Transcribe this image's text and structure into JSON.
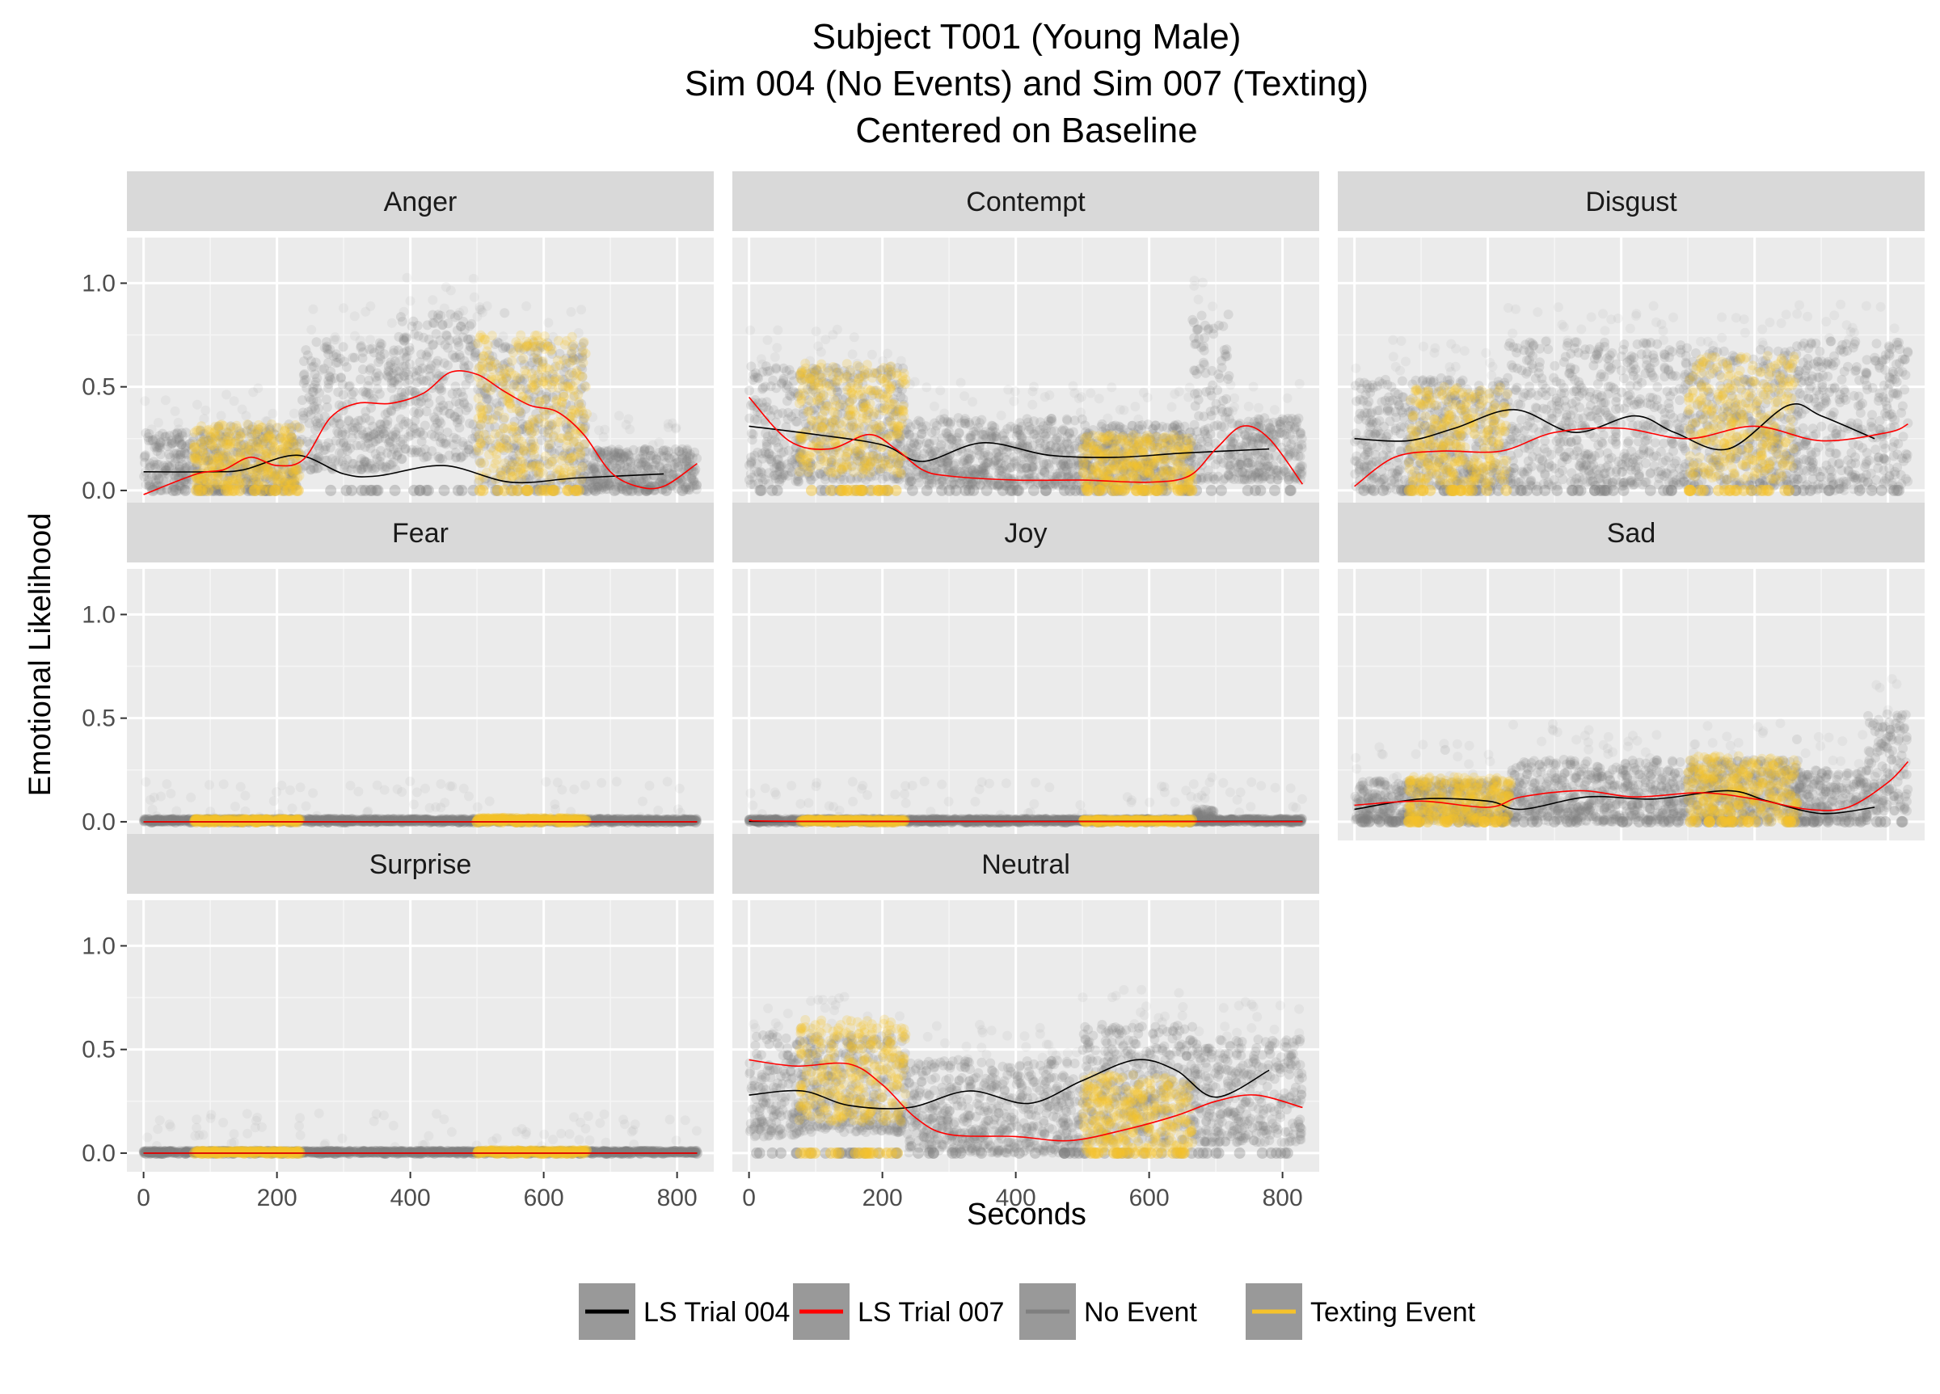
{
  "chart_data": {
    "type": "scatter",
    "title_lines": [
      "Subject T001 (Young Male)",
      "Sim 004 (No Events) and Sim 007 (Texting)",
      "Centered on Baseline"
    ],
    "xlabel": "Seconds",
    "ylabel": "Emotional Likelihood",
    "xlim": [
      -25,
      855
    ],
    "ylim": [
      -0.09,
      1.22
    ],
    "x_ticks": [
      0,
      200,
      400,
      600,
      800
    ],
    "y_ticks": [
      0.0,
      0.5,
      1.0
    ],
    "x_tick_labels": [
      "0",
      "200",
      "400",
      "600",
      "800"
    ],
    "y_tick_labels": [
      "0.0",
      "0.5",
      "1.0"
    ],
    "grid": true,
    "legend": {
      "position": "bottom",
      "entries": [
        {
          "label": "LS Trial 004",
          "color": "#000000"
        },
        {
          "label": "LS Trial 007",
          "color": "#ff0000"
        },
        {
          "label": "No Event",
          "color": "#7f7f7f"
        },
        {
          "label": "Texting Event",
          "color": "#f5c22b"
        }
      ]
    },
    "colors": {
      "no_event": "#7f7f7f",
      "texting_event": "#f5c22b",
      "ls_trial_004": "#000000",
      "ls_trial_007": "#ff0000"
    },
    "texting_intervals": [
      [
        75,
        235
      ],
      [
        500,
        665
      ]
    ],
    "panels": [
      {
        "name": "Anger",
        "bands": [
          {
            "x": [
              0,
              80
            ],
            "lo": 0.0,
            "hi": 0.28
          },
          {
            "x": [
              80,
              235
            ],
            "lo": 0.0,
            "hi": 0.32
          },
          {
            "x": [
              235,
              380
            ],
            "lo": 0.1,
            "hi": 0.72
          },
          {
            "x": [
              380,
              500
            ],
            "lo": 0.15,
            "hi": 0.85
          },
          {
            "x": [
              500,
              665
            ],
            "lo": 0.0,
            "hi": 0.72
          },
          {
            "x": [
              665,
              830
            ],
            "lo": 0.0,
            "hi": 0.2
          }
        ],
        "texting_bands": [
          {
            "x": [
              75,
              235
            ],
            "lo": 0.02,
            "hi": 0.32
          },
          {
            "x": [
              500,
              665
            ],
            "lo": 0.05,
            "hi": 0.75
          }
        ],
        "ls_004": {
          "x": [
            0,
            100,
            150,
            230,
            300,
            350,
            450,
            550,
            650,
            780
          ],
          "y": [
            0.09,
            0.09,
            0.1,
            0.17,
            0.08,
            0.07,
            0.12,
            0.04,
            0.06,
            0.08
          ]
        },
        "ls_007": {
          "x": [
            0,
            80,
            120,
            160,
            200,
            240,
            280,
            320,
            370,
            420,
            460,
            500,
            540,
            580,
            620,
            660,
            700,
            740,
            780,
            830
          ],
          "y": [
            -0.02,
            0.08,
            0.1,
            0.16,
            0.12,
            0.15,
            0.35,
            0.42,
            0.42,
            0.47,
            0.57,
            0.56,
            0.48,
            0.41,
            0.38,
            0.27,
            0.09,
            0.02,
            0.02,
            0.13
          ]
        }
      },
      {
        "name": "Contempt",
        "bands": [
          {
            "x": [
              0,
              75
            ],
            "lo": 0.03,
            "hi": 0.6
          },
          {
            "x": [
              75,
              235
            ],
            "lo": 0.05,
            "hi": 0.6
          },
          {
            "x": [
              235,
              500
            ],
            "lo": 0.02,
            "hi": 0.35
          },
          {
            "x": [
              500,
              665
            ],
            "lo": 0.02,
            "hi": 0.32
          },
          {
            "x": [
              665,
              720
            ],
            "lo": 0.05,
            "hi": 0.85
          },
          {
            "x": [
              720,
              830
            ],
            "lo": 0.05,
            "hi": 0.35
          }
        ],
        "texting_bands": [
          {
            "x": [
              75,
              235
            ],
            "lo": 0.08,
            "hi": 0.62
          },
          {
            "x": [
              500,
              665
            ],
            "lo": 0.0,
            "hi": 0.27
          }
        ],
        "ls_004": {
          "x": [
            0,
            100,
            200,
            260,
            350,
            450,
            550,
            650,
            780
          ],
          "y": [
            0.31,
            0.27,
            0.22,
            0.14,
            0.23,
            0.17,
            0.16,
            0.18,
            0.2
          ]
        },
        "ls_007": {
          "x": [
            0,
            60,
            120,
            180,
            220,
            260,
            300,
            400,
            500,
            600,
            660,
            700,
            740,
            780,
            830
          ],
          "y": [
            0.45,
            0.24,
            0.2,
            0.27,
            0.2,
            0.1,
            0.07,
            0.05,
            0.05,
            0.04,
            0.07,
            0.2,
            0.31,
            0.25,
            0.03
          ]
        }
      },
      {
        "name": "Disgust",
        "bands": [
          {
            "x": [
              0,
              80
            ],
            "lo": 0.0,
            "hi": 0.55
          },
          {
            "x": [
              80,
              230
            ],
            "lo": 0.02,
            "hi": 0.55
          },
          {
            "x": [
              230,
              500
            ],
            "lo": 0.02,
            "hi": 0.72
          },
          {
            "x": [
              500,
              660
            ],
            "lo": 0.02,
            "hi": 0.68
          },
          {
            "x": [
              660,
              830
            ],
            "lo": 0.0,
            "hi": 0.72
          }
        ],
        "texting_bands": [
          {
            "x": [
              80,
              230
            ],
            "lo": 0.03,
            "hi": 0.5
          },
          {
            "x": [
              500,
              660
            ],
            "lo": 0.05,
            "hi": 0.65
          }
        ],
        "ls_004": {
          "x": [
            0,
            80,
            150,
            240,
            330,
            420,
            480,
            560,
            650,
            700,
            780
          ],
          "y": [
            0.25,
            0.24,
            0.3,
            0.39,
            0.28,
            0.36,
            0.28,
            0.2,
            0.41,
            0.36,
            0.25
          ]
        },
        "ls_007": {
          "x": [
            0,
            60,
            130,
            220,
            300,
            400,
            500,
            600,
            700,
            800,
            830
          ],
          "y": [
            0.02,
            0.16,
            0.19,
            0.19,
            0.28,
            0.3,
            0.25,
            0.31,
            0.24,
            0.28,
            0.32
          ]
        }
      },
      {
        "name": "Fear",
        "bands": [
          {
            "x": [
              0,
              830
            ],
            "lo": 0.0,
            "hi": 0.015
          }
        ],
        "texting_bands": [
          {
            "x": [
              75,
              235
            ],
            "lo": 0.0,
            "hi": 0.015
          },
          {
            "x": [
              500,
              665
            ],
            "lo": 0.0,
            "hi": 0.02
          }
        ],
        "ls_004": {
          "x": [
            0,
            830
          ],
          "y": [
            0.0,
            0.0
          ]
        },
        "ls_007": {
          "x": [
            0,
            830
          ],
          "y": [
            0.0,
            0.0
          ]
        }
      },
      {
        "name": "Joy",
        "bands": [
          {
            "x": [
              0,
              830
            ],
            "lo": 0.0,
            "hi": 0.015
          },
          {
            "x": [
              670,
              700
            ],
            "lo": 0.0,
            "hi": 0.06
          }
        ],
        "texting_bands": [
          {
            "x": [
              75,
              235
            ],
            "lo": 0.0,
            "hi": 0.012
          },
          {
            "x": [
              500,
              665
            ],
            "lo": 0.0,
            "hi": 0.012
          }
        ],
        "ls_004": {
          "x": [
            0,
            830
          ],
          "y": [
            0.002,
            0.002
          ]
        },
        "ls_007": {
          "x": [
            0,
            100,
            830
          ],
          "y": [
            0.008,
            0.002,
            0.001
          ]
        }
      },
      {
        "name": "Sad",
        "bands": [
          {
            "x": [
              0,
              80
            ],
            "lo": 0.0,
            "hi": 0.2
          },
          {
            "x": [
              80,
              235
            ],
            "lo": 0.0,
            "hi": 0.2
          },
          {
            "x": [
              235,
              500
            ],
            "lo": 0.0,
            "hi": 0.3
          },
          {
            "x": [
              500,
              665
            ],
            "lo": 0.0,
            "hi": 0.3
          },
          {
            "x": [
              665,
              770
            ],
            "lo": 0.0,
            "hi": 0.25
          },
          {
            "x": [
              770,
              830
            ],
            "lo": 0.05,
            "hi": 0.52
          }
        ],
        "texting_bands": [
          {
            "x": [
              80,
              235
            ],
            "lo": 0.0,
            "hi": 0.22
          },
          {
            "x": [
              500,
              665
            ],
            "lo": 0.0,
            "hi": 0.32
          }
        ],
        "ls_004": {
          "x": [
            0,
            100,
            200,
            250,
            350,
            450,
            560,
            620,
            700,
            780
          ],
          "y": [
            0.06,
            0.11,
            0.1,
            0.06,
            0.12,
            0.11,
            0.15,
            0.1,
            0.04,
            0.07
          ]
        },
        "ls_007": {
          "x": [
            0,
            100,
            200,
            250,
            340,
            420,
            520,
            600,
            680,
            740,
            800,
            830
          ],
          "y": [
            0.08,
            0.1,
            0.07,
            0.12,
            0.15,
            0.12,
            0.14,
            0.11,
            0.06,
            0.07,
            0.19,
            0.29
          ]
        }
      },
      {
        "name": "Surprise",
        "bands": [
          {
            "x": [
              0,
              830
            ],
            "lo": 0.0,
            "hi": 0.012
          }
        ],
        "texting_bands": [
          {
            "x": [
              75,
              235
            ],
            "lo": 0.0,
            "hi": 0.012
          },
          {
            "x": [
              500,
              665
            ],
            "lo": 0.0,
            "hi": 0.015
          }
        ],
        "ls_004": {
          "x": [
            0,
            830
          ],
          "y": [
            0.0,
            0.0
          ]
        },
        "ls_007": {
          "x": [
            0,
            830
          ],
          "y": [
            0.0,
            0.0
          ]
        }
      },
      {
        "name": "Neutral",
        "bands": [
          {
            "x": [
              0,
              75
            ],
            "lo": 0.08,
            "hi": 0.58
          },
          {
            "x": [
              75,
              235
            ],
            "lo": 0.1,
            "hi": 0.58
          },
          {
            "x": [
              235,
              500
            ],
            "lo": 0.0,
            "hi": 0.45
          },
          {
            "x": [
              500,
              665
            ],
            "lo": 0.05,
            "hi": 0.62
          },
          {
            "x": [
              665,
              830
            ],
            "lo": 0.05,
            "hi": 0.55
          }
        ],
        "texting_bands": [
          {
            "x": [
              75,
              235
            ],
            "lo": 0.15,
            "hi": 0.65
          },
          {
            "x": [
              500,
              665
            ],
            "lo": 0.0,
            "hi": 0.38
          }
        ],
        "ls_004": {
          "x": [
            0,
            80,
            150,
            240,
            330,
            420,
            500,
            580,
            640,
            700,
            780
          ],
          "y": [
            0.28,
            0.3,
            0.23,
            0.22,
            0.3,
            0.24,
            0.35,
            0.45,
            0.4,
            0.27,
            0.4
          ]
        },
        "ls_007": {
          "x": [
            0,
            70,
            150,
            200,
            250,
            300,
            400,
            480,
            560,
            640,
            700,
            760,
            830
          ],
          "y": [
            0.45,
            0.42,
            0.43,
            0.33,
            0.17,
            0.09,
            0.08,
            0.06,
            0.11,
            0.18,
            0.25,
            0.28,
            0.22
          ]
        }
      }
    ]
  }
}
